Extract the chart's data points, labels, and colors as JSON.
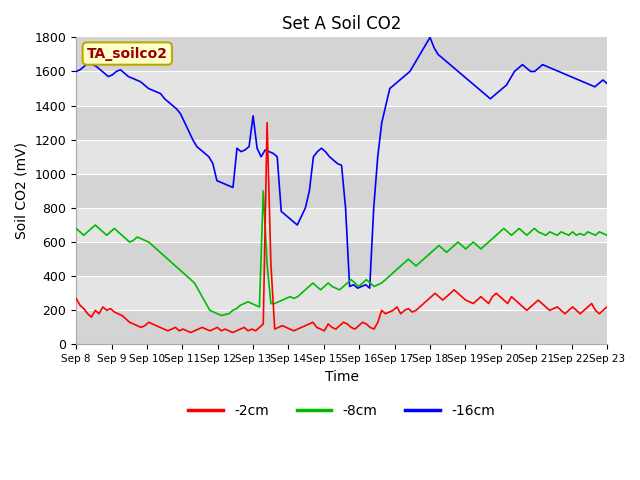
{
  "title": "Set A Soil CO2",
  "ylabel": "Soil CO2 (mV)",
  "xlabel": "Time",
  "ylim": [
    0,
    1800
  ],
  "tag_label": "TA_soilco2",
  "legend_labels": [
    "-2cm",
    "-8cm",
    "-16cm"
  ],
  "legend_colors": [
    "#ff0000",
    "#00bb00",
    "#0000ff"
  ],
  "xtick_labels": [
    "Sep 8",
    "Sep 9",
    "Sep 10",
    "Sep 11",
    "Sep 12",
    "Sep 13",
    "Sep 14",
    "Sep 15",
    "Sep 16",
    "Sep 17",
    "Sep 18",
    "Sep 19",
    "Sep 20",
    "Sep 21",
    "Sep 22",
    "Sep 23"
  ],
  "y_ticks": [
    0,
    200,
    400,
    600,
    800,
    1000,
    1200,
    1400,
    1600,
    1800
  ],
  "red_2cm": [
    270,
    230,
    210,
    180,
    160,
    200,
    180,
    220,
    200,
    210,
    190,
    180,
    170,
    150,
    130,
    120,
    110,
    100,
    110,
    130,
    120,
    110,
    100,
    90,
    80,
    90,
    100,
    80,
    90,
    80,
    70,
    80,
    90,
    100,
    90,
    80,
    90,
    100,
    80,
    90,
    80,
    70,
    80,
    90,
    100,
    80,
    90,
    80,
    100,
    120,
    1300,
    470,
    90,
    100,
    110,
    100,
    90,
    80,
    90,
    100,
    110,
    120,
    130,
    100,
    90,
    80,
    120,
    100,
    90,
    110,
    130,
    120,
    100,
    90,
    110,
    130,
    120,
    100,
    90,
    130,
    200,
    180,
    190,
    200,
    220,
    180,
    200,
    210,
    190,
    200,
    220,
    240,
    260,
    280,
    300,
    280,
    260,
    280,
    300,
    320,
    300,
    280,
    260,
    250,
    240,
    260,
    280,
    260,
    240,
    280,
    300,
    280,
    260,
    240,
    280,
    260,
    240,
    220,
    200,
    220,
    240,
    260,
    240,
    220,
    200,
    210,
    220,
    200,
    180,
    200,
    220,
    200,
    180,
    200,
    220,
    240,
    200,
    180,
    200,
    220
  ],
  "green_8cm": [
    680,
    660,
    640,
    660,
    680,
    700,
    680,
    660,
    640,
    660,
    680,
    660,
    640,
    620,
    600,
    610,
    630,
    620,
    610,
    600,
    580,
    560,
    540,
    520,
    500,
    480,
    460,
    440,
    420,
    400,
    380,
    360,
    320,
    280,
    240,
    200,
    190,
    180,
    170,
    175,
    180,
    200,
    210,
    230,
    240,
    250,
    240,
    230,
    220,
    900,
    470,
    240,
    240,
    250,
    260,
    270,
    280,
    270,
    280,
    300,
    320,
    340,
    360,
    340,
    320,
    340,
    360,
    340,
    330,
    320,
    340,
    360,
    380,
    360,
    340,
    360,
    380,
    360,
    340,
    350,
    360,
    380,
    400,
    420,
    440,
    460,
    480,
    500,
    480,
    460,
    480,
    500,
    520,
    540,
    560,
    580,
    560,
    540,
    560,
    580,
    600,
    580,
    560,
    580,
    600,
    580,
    560,
    580,
    600,
    620,
    640,
    660,
    680,
    660,
    640,
    660,
    680,
    660,
    640,
    660,
    680,
    660,
    650,
    640,
    660,
    650,
    640,
    660,
    650,
    640,
    660,
    640,
    650,
    640,
    660,
    650,
    640,
    660,
    650,
    640
  ],
  "blue_16cm": [
    1600,
    1610,
    1630,
    1650,
    1640,
    1630,
    1610,
    1590,
    1570,
    1580,
    1600,
    1610,
    1590,
    1570,
    1560,
    1550,
    1540,
    1520,
    1500,
    1490,
    1480,
    1470,
    1440,
    1420,
    1400,
    1380,
    1350,
    1300,
    1250,
    1200,
    1160,
    1140,
    1120,
    1100,
    1060,
    960,
    950,
    940,
    930,
    920,
    1150,
    1130,
    1140,
    1160,
    1340,
    1150,
    1100,
    1140,
    1130,
    1120,
    1100,
    780,
    760,
    740,
    720,
    700,
    750,
    800,
    900,
    1100,
    1130,
    1150,
    1130,
    1100,
    1080,
    1060,
    1050,
    800,
    340,
    350,
    330,
    340,
    350,
    330,
    800,
    1100,
    1300,
    1400,
    1500,
    1520,
    1540,
    1560,
    1580,
    1600,
    1640,
    1680,
    1720,
    1760,
    1800,
    1740,
    1700,
    1680,
    1660,
    1640,
    1620,
    1600,
    1580,
    1560,
    1540,
    1520,
    1500,
    1480,
    1460,
    1440,
    1460,
    1480,
    1500,
    1520,
    1560,
    1600,
    1620,
    1640,
    1620,
    1600,
    1600,
    1620,
    1640,
    1630,
    1620,
    1610,
    1600,
    1590,
    1580,
    1570,
    1560,
    1550,
    1540,
    1530,
    1520,
    1510,
    1530,
    1550,
    1530
  ]
}
